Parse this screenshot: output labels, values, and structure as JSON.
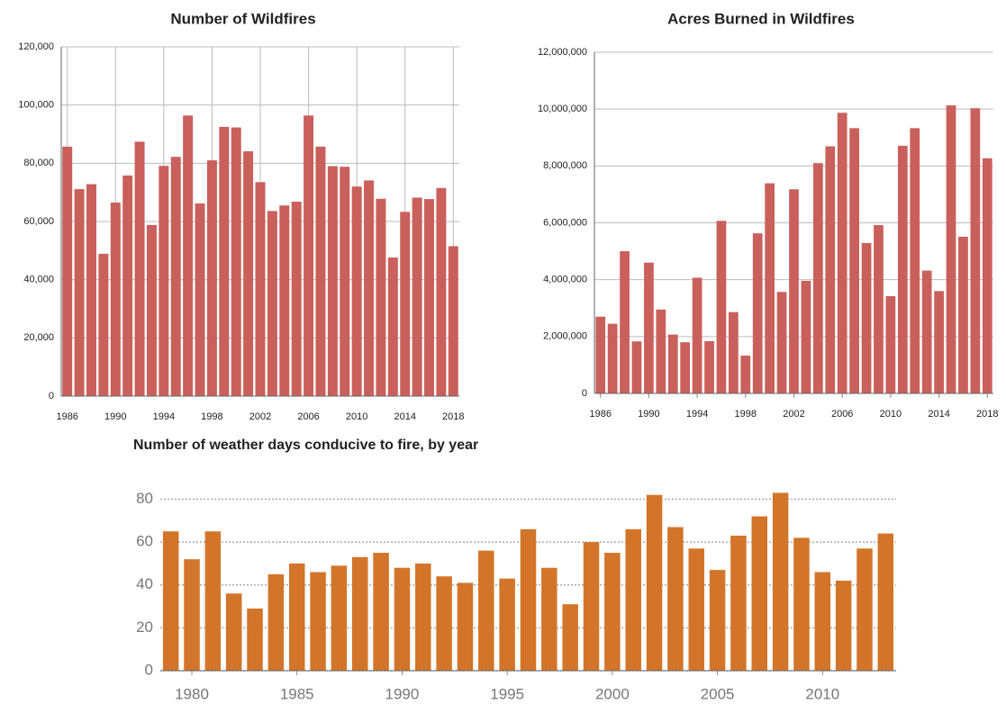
{
  "chart_data": [
    {
      "type": "bar",
      "title": "Number of Wildfires",
      "color": "#c9605c",
      "grid": "both",
      "grid_style": "solid",
      "x": [
        1986,
        1987,
        1988,
        1989,
        1990,
        1991,
        1992,
        1993,
        1994,
        1995,
        1996,
        1997,
        1998,
        1999,
        2000,
        2001,
        2002,
        2003,
        2004,
        2005,
        2006,
        2007,
        2008,
        2009,
        2010,
        2011,
        2012,
        2013,
        2014,
        2015,
        2016,
        2017,
        2018
      ],
      "values": [
        85700,
        71100,
        72800,
        48900,
        66500,
        75800,
        87400,
        58800,
        79100,
        82200,
        96400,
        66200,
        81000,
        92500,
        92300,
        84100,
        73500,
        63600,
        65500,
        66800,
        96400,
        85700,
        79000,
        78800,
        72000,
        74100,
        67800,
        47600,
        63300,
        68200,
        67700,
        71500,
        51500
      ],
      "xlim": [
        1985.5,
        2018.5
      ],
      "xticks": [
        1986,
        1990,
        1994,
        1998,
        2002,
        2006,
        2010,
        2014,
        2018
      ],
      "ylim": [
        0,
        120000
      ],
      "yticks": [
        0,
        {
          "value": 20000,
          "label": "20,000"
        },
        {
          "value": 40000,
          "label": "40,000"
        },
        {
          "value": 60000,
          "label": "60,000"
        },
        {
          "value": 80000,
          "label": "80,000"
        },
        {
          "value": 100000,
          "label": "100,000"
        },
        {
          "value": 120000,
          "label": "120,000"
        }
      ]
    },
    {
      "type": "bar",
      "title": "Acres Burned in Wildfires",
      "color": "#c9605c",
      "grid": "y",
      "grid_style": "solid",
      "x": [
        1986,
        1987,
        1988,
        1989,
        1990,
        1991,
        1992,
        1993,
        1994,
        1995,
        1996,
        1997,
        1998,
        1999,
        2000,
        2001,
        2002,
        2003,
        2004,
        2005,
        2006,
        2007,
        2008,
        2009,
        2010,
        2011,
        2012,
        2013,
        2014,
        2015,
        2016,
        2017,
        2018
      ],
      "values": [
        2700000,
        2450000,
        5000000,
        1830000,
        4600000,
        2950000,
        2070000,
        1800000,
        4070000,
        1840000,
        6070000,
        2860000,
        1330000,
        5630000,
        7390000,
        3570000,
        7180000,
        3960000,
        8100000,
        8690000,
        9870000,
        9330000,
        5290000,
        5920000,
        3420000,
        8710000,
        9330000,
        4320000,
        3600000,
        10130000,
        5510000,
        10030000,
        8270000
      ],
      "xlim": [
        1985.5,
        2018.5
      ],
      "xticks": [
        1986,
        1990,
        1994,
        1998,
        2002,
        2006,
        2010,
        2014,
        2018
      ],
      "ylim": [
        0,
        12000000
      ],
      "yticks": [
        0,
        {
          "value": 2000000,
          "label": "2,000,000"
        },
        {
          "value": 4000000,
          "label": "4,000,000"
        },
        {
          "value": 6000000,
          "label": "6,000,000"
        },
        {
          "value": 8000000,
          "label": "8,000,000"
        },
        {
          "value": 10000000,
          "label": "10,000,000"
        },
        {
          "value": 12000000,
          "label": "12,000,000"
        }
      ]
    },
    {
      "type": "bar",
      "title": "Number of weather days conducive to fire, by year",
      "color": "#d2752a",
      "grid": "y",
      "grid_style": "dotted",
      "x": [
        1979,
        1980,
        1981,
        1982,
        1983,
        1984,
        1985,
        1986,
        1987,
        1988,
        1989,
        1990,
        1991,
        1992,
        1993,
        1994,
        1995,
        1996,
        1997,
        1998,
        1999,
        2000,
        2001,
        2002,
        2003,
        2004,
        2005,
        2006,
        2007,
        2008,
        2009,
        2010,
        2011,
        2012,
        2013
      ],
      "values": [
        65,
        52,
        65,
        36,
        29,
        45,
        50,
        46,
        49,
        53,
        55,
        48,
        50,
        44,
        41,
        56,
        43,
        66,
        48,
        31,
        60,
        55,
        66,
        82,
        67,
        57,
        47,
        63,
        72,
        83,
        62,
        46,
        42,
        57,
        64
      ],
      "xlim": [
        1978.5,
        2013.5
      ],
      "xticks": [
        1980,
        1985,
        1990,
        1995,
        2000,
        2005,
        2010
      ],
      "ylim": [
        0,
        84
      ],
      "yticks": [
        0,
        20,
        40,
        60,
        80
      ]
    }
  ]
}
